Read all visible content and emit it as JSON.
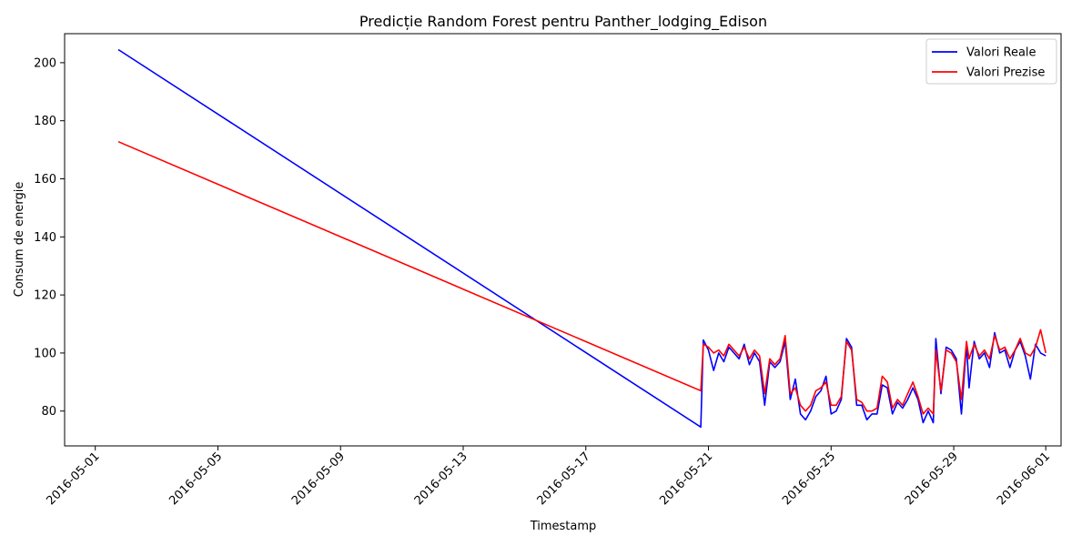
{
  "chart_data": {
    "type": "line",
    "title": "Predicție Random Forest pentru Panther_lodging_Edison",
    "xlabel": "Timestamp",
    "ylabel": "Consum de energie",
    "xlim": [
      "2016-04-30T00:00",
      "2016-06-01T12:00"
    ],
    "ylim": [
      68,
      210
    ],
    "x_ticks": [
      "2016-05-01",
      "2016-05-05",
      "2016-05-09",
      "2016-05-13",
      "2016-05-17",
      "2016-05-21",
      "2016-05-25",
      "2016-05-29",
      "2016-06-01"
    ],
    "y_ticks": [
      80,
      100,
      120,
      140,
      160,
      180,
      200
    ],
    "legend": {
      "placement": "top-right",
      "entries": [
        "Valori Reale",
        "Valori Prezise"
      ]
    },
    "series": [
      {
        "name": "Valori Reale",
        "color": "#0000ff",
        "points": [
          [
            "2016-05-01T18:00",
            204.5
          ],
          [
            "2016-05-20T18:00",
            74.5
          ],
          [
            "2016-05-20T20:00",
            104.5
          ],
          [
            "2016-05-21T00:00",
            101
          ],
          [
            "2016-05-21T04:00",
            94
          ],
          [
            "2016-05-21T08:00",
            100
          ],
          [
            "2016-05-21T12:00",
            97
          ],
          [
            "2016-05-21T16:00",
            102
          ],
          [
            "2016-05-21T20:00",
            100
          ],
          [
            "2016-05-22T00:00",
            98
          ],
          [
            "2016-05-22T04:00",
            103
          ],
          [
            "2016-05-22T08:00",
            96
          ],
          [
            "2016-05-22T12:00",
            100
          ],
          [
            "2016-05-22T16:00",
            97
          ],
          [
            "2016-05-22T20:00",
            82
          ],
          [
            "2016-05-23T00:00",
            97
          ],
          [
            "2016-05-23T04:00",
            95
          ],
          [
            "2016-05-23T08:00",
            97
          ],
          [
            "2016-05-23T12:00",
            104
          ],
          [
            "2016-05-23T16:00",
            84
          ],
          [
            "2016-05-23T20:00",
            91
          ],
          [
            "2016-05-24T00:00",
            79
          ],
          [
            "2016-05-24T04:00",
            77
          ],
          [
            "2016-05-24T08:00",
            80
          ],
          [
            "2016-05-24T12:00",
            85
          ],
          [
            "2016-05-24T16:00",
            87
          ],
          [
            "2016-05-24T20:00",
            92
          ],
          [
            "2016-05-25T00:00",
            79
          ],
          [
            "2016-05-25T04:00",
            80
          ],
          [
            "2016-05-25T08:00",
            84
          ],
          [
            "2016-05-25T12:00",
            105
          ],
          [
            "2016-05-25T16:00",
            102
          ],
          [
            "2016-05-25T20:00",
            82
          ],
          [
            "2016-05-26T00:00",
            82
          ],
          [
            "2016-05-26T04:00",
            77
          ],
          [
            "2016-05-26T08:00",
            79
          ],
          [
            "2016-05-26T12:00",
            79
          ],
          [
            "2016-05-26T16:00",
            89
          ],
          [
            "2016-05-26T20:00",
            88
          ],
          [
            "2016-05-27T00:00",
            79
          ],
          [
            "2016-05-27T04:00",
            83
          ],
          [
            "2016-05-27T08:00",
            81
          ],
          [
            "2016-05-27T12:00",
            84
          ],
          [
            "2016-05-27T16:00",
            88
          ],
          [
            "2016-05-27T20:00",
            84
          ],
          [
            "2016-05-28T00:00",
            76
          ],
          [
            "2016-05-28T04:00",
            80
          ],
          [
            "2016-05-28T08:00",
            76
          ],
          [
            "2016-05-28T10:00",
            105
          ],
          [
            "2016-05-28T14:00",
            86
          ],
          [
            "2016-05-28T18:00",
            102
          ],
          [
            "2016-05-28T22:00",
            101
          ],
          [
            "2016-05-29T02:00",
            98
          ],
          [
            "2016-05-29T06:00",
            79
          ],
          [
            "2016-05-29T10:00",
            103
          ],
          [
            "2016-05-29T12:00",
            88
          ],
          [
            "2016-05-29T16:00",
            104
          ],
          [
            "2016-05-29T20:00",
            98
          ],
          [
            "2016-05-30T00:00",
            100
          ],
          [
            "2016-05-30T04:00",
            95
          ],
          [
            "2016-05-30T08:00",
            107
          ],
          [
            "2016-05-30T12:00",
            100
          ],
          [
            "2016-05-30T16:00",
            101
          ],
          [
            "2016-05-30T20:00",
            95
          ],
          [
            "2016-05-31T00:00",
            101
          ],
          [
            "2016-05-31T04:00",
            104
          ],
          [
            "2016-05-31T08:00",
            99
          ],
          [
            "2016-05-31T12:00",
            91
          ],
          [
            "2016-05-31T16:00",
            103
          ],
          [
            "2016-05-31T20:00",
            100
          ],
          [
            "2016-06-01T00:00",
            99
          ]
        ]
      },
      {
        "name": "Valori Prezise",
        "color": "#ff0000",
        "points": [
          [
            "2016-05-01T18:00",
            172.8
          ],
          [
            "2016-05-20T18:00",
            87
          ],
          [
            "2016-05-20T20:00",
            103
          ],
          [
            "2016-05-21T00:00",
            102
          ],
          [
            "2016-05-21T04:00",
            100
          ],
          [
            "2016-05-21T08:00",
            101
          ],
          [
            "2016-05-21T12:00",
            99
          ],
          [
            "2016-05-21T16:00",
            103
          ],
          [
            "2016-05-21T20:00",
            101
          ],
          [
            "2016-05-22T00:00",
            99
          ],
          [
            "2016-05-22T04:00",
            102
          ],
          [
            "2016-05-22T08:00",
            98
          ],
          [
            "2016-05-22T12:00",
            101
          ],
          [
            "2016-05-22T16:00",
            99
          ],
          [
            "2016-05-22T20:00",
            86
          ],
          [
            "2016-05-23T00:00",
            98
          ],
          [
            "2016-05-23T04:00",
            96
          ],
          [
            "2016-05-23T08:00",
            98
          ],
          [
            "2016-05-23T12:00",
            106
          ],
          [
            "2016-05-23T16:00",
            86
          ],
          [
            "2016-05-23T20:00",
            88
          ],
          [
            "2016-05-24T00:00",
            82
          ],
          [
            "2016-05-24T04:00",
            80
          ],
          [
            "2016-05-24T08:00",
            82
          ],
          [
            "2016-05-24T12:00",
            87
          ],
          [
            "2016-05-24T16:00",
            88
          ],
          [
            "2016-05-24T20:00",
            90
          ],
          [
            "2016-05-25T00:00",
            82
          ],
          [
            "2016-05-25T04:00",
            82
          ],
          [
            "2016-05-25T08:00",
            85
          ],
          [
            "2016-05-25T12:00",
            104
          ],
          [
            "2016-05-25T16:00",
            101
          ],
          [
            "2016-05-25T20:00",
            84
          ],
          [
            "2016-05-26T00:00",
            83
          ],
          [
            "2016-05-26T04:00",
            80
          ],
          [
            "2016-05-26T08:00",
            80
          ],
          [
            "2016-05-26T12:00",
            81
          ],
          [
            "2016-05-26T16:00",
            92
          ],
          [
            "2016-05-26T20:00",
            90
          ],
          [
            "2016-05-27T00:00",
            81
          ],
          [
            "2016-05-27T04:00",
            84
          ],
          [
            "2016-05-27T08:00",
            82
          ],
          [
            "2016-05-27T12:00",
            86
          ],
          [
            "2016-05-27T16:00",
            90
          ],
          [
            "2016-05-27T20:00",
            85
          ],
          [
            "2016-05-28T00:00",
            79
          ],
          [
            "2016-05-28T04:00",
            81
          ],
          [
            "2016-05-28T08:00",
            79
          ],
          [
            "2016-05-28T10:00",
            101
          ],
          [
            "2016-05-28T14:00",
            87
          ],
          [
            "2016-05-28T18:00",
            101
          ],
          [
            "2016-05-28T22:00",
            100
          ],
          [
            "2016-05-29T02:00",
            97
          ],
          [
            "2016-05-29T06:00",
            84
          ],
          [
            "2016-05-29T10:00",
            104
          ],
          [
            "2016-05-29T12:00",
            98
          ],
          [
            "2016-05-29T16:00",
            103
          ],
          [
            "2016-05-29T20:00",
            99
          ],
          [
            "2016-05-30T00:00",
            101
          ],
          [
            "2016-05-30T04:00",
            98
          ],
          [
            "2016-05-30T08:00",
            106
          ],
          [
            "2016-05-30T12:00",
            101
          ],
          [
            "2016-05-30T16:00",
            102
          ],
          [
            "2016-05-30T20:00",
            98
          ],
          [
            "2016-05-31T00:00",
            101
          ],
          [
            "2016-05-31T04:00",
            105
          ],
          [
            "2016-05-31T08:00",
            100
          ],
          [
            "2016-05-31T12:00",
            99
          ],
          [
            "2016-05-31T16:00",
            102
          ],
          [
            "2016-05-31T20:00",
            108
          ],
          [
            "2016-06-01T00:00",
            100
          ]
        ]
      }
    ]
  }
}
